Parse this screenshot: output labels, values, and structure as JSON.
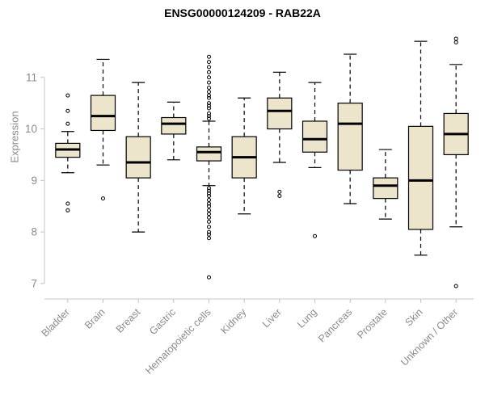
{
  "chart_data": {
    "type": "boxplot",
    "title": "ENSG00000124209 - RAB22A",
    "ylabel": "Expression",
    "xlabel": "",
    "ylim": [
      6.7,
      12.0
    ],
    "yticks": [
      7,
      8,
      9,
      10,
      11
    ],
    "grid": false,
    "legend": "none",
    "colors": {
      "box_fill": "#ece4cb",
      "box_stroke": "#000000",
      "whisker": "#000000",
      "axis": "#c4c4c4",
      "tick_label": "#8a8a8a",
      "title": "#000000"
    },
    "categories": [
      "Bladder",
      "Brain",
      "Breast",
      "Gastric",
      "Hematopoietic cells",
      "Kidney",
      "Liver",
      "Lung",
      "Pancreas",
      "Prostate",
      "Skin",
      "Unknown / Other"
    ],
    "series": [
      {
        "category": "Bladder",
        "whisker_low": 9.15,
        "q1": 9.45,
        "median": 9.6,
        "q3": 9.72,
        "whisker_high": 9.95,
        "outliers": [
          10.65,
          10.35,
          10.1,
          8.55,
          8.42
        ]
      },
      {
        "category": "Brain",
        "whisker_low": 9.3,
        "q1": 9.97,
        "median": 10.25,
        "q3": 10.65,
        "whisker_high": 11.35,
        "outliers": [
          8.65
        ]
      },
      {
        "category": "Breast",
        "whisker_low": 8.0,
        "q1": 9.05,
        "median": 9.35,
        "q3": 9.85,
        "whisker_high": 10.9,
        "outliers": []
      },
      {
        "category": "Gastric",
        "whisker_low": 9.4,
        "q1": 9.9,
        "median": 10.1,
        "q3": 10.22,
        "whisker_high": 10.52,
        "outliers": []
      },
      {
        "category": "Hematopoietic cells",
        "whisker_low": 8.9,
        "q1": 9.38,
        "median": 9.55,
        "q3": 9.65,
        "whisker_high": 10.15,
        "outliers": [
          10.2,
          10.25,
          10.3,
          10.4,
          10.45,
          10.5,
          10.6,
          10.65,
          10.72,
          10.8,
          10.9,
          11.0,
          11.1,
          11.2,
          11.3,
          11.4,
          8.85,
          8.8,
          8.75,
          8.7,
          8.62,
          8.55,
          8.5,
          8.42,
          8.35,
          8.28,
          8.2,
          8.1,
          8.0,
          7.95,
          7.88,
          7.12
        ]
      },
      {
        "category": "Kidney",
        "whisker_low": 8.35,
        "q1": 9.05,
        "median": 9.45,
        "q3": 9.85,
        "whisker_high": 10.6,
        "outliers": []
      },
      {
        "category": "Liver",
        "whisker_low": 9.35,
        "q1": 10.0,
        "median": 10.35,
        "q3": 10.6,
        "whisker_high": 11.1,
        "outliers": [
          8.78,
          8.7
        ]
      },
      {
        "category": "Lung",
        "whisker_low": 9.25,
        "q1": 9.55,
        "median": 9.8,
        "q3": 10.15,
        "whisker_high": 10.9,
        "outliers": [
          7.92
        ]
      },
      {
        "category": "Pancreas",
        "whisker_low": 8.55,
        "q1": 9.2,
        "median": 10.1,
        "q3": 10.5,
        "whisker_high": 11.45,
        "outliers": []
      },
      {
        "category": "Prostate",
        "whisker_low": 8.25,
        "q1": 8.65,
        "median": 8.9,
        "q3": 9.05,
        "whisker_high": 9.6,
        "outliers": []
      },
      {
        "category": "Skin",
        "whisker_low": 7.55,
        "q1": 8.05,
        "median": 9.0,
        "q3": 10.05,
        "whisker_high": 11.7,
        "outliers": []
      },
      {
        "category": "Unknown / Other",
        "whisker_low": 8.1,
        "q1": 9.5,
        "median": 9.9,
        "q3": 10.3,
        "whisker_high": 11.25,
        "outliers": [
          11.75,
          11.68,
          6.95
        ]
      }
    ]
  }
}
